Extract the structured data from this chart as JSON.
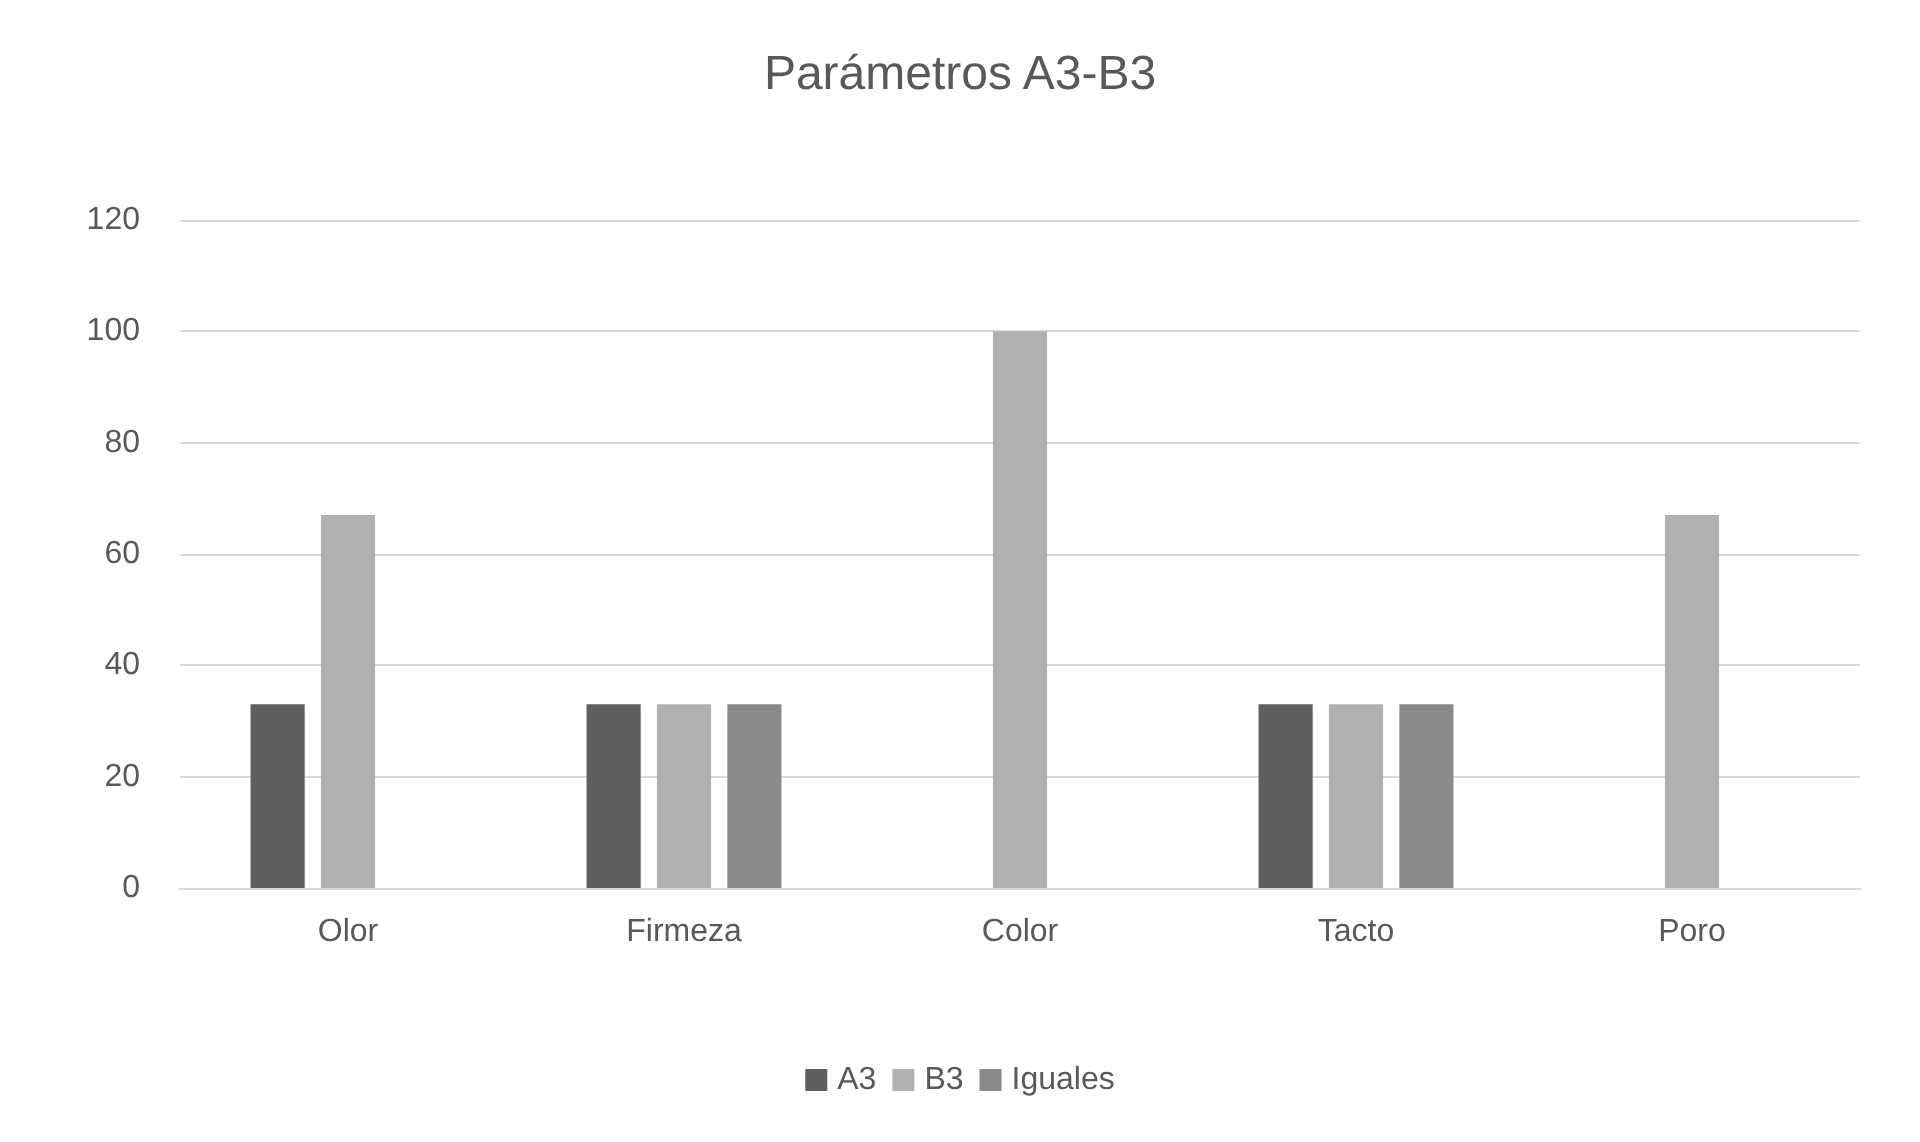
{
  "chart_data": {
    "type": "bar",
    "title": "Parámetros A3-B3",
    "categories": [
      "Olor",
      "Firmeza",
      "Color",
      "Tacto",
      "Poro"
    ],
    "series": [
      {
        "name": "A3",
        "color": "#5f5f5f",
        "values": [
          33,
          33,
          0,
          33,
          0
        ]
      },
      {
        "name": "B3",
        "color": "#b0b0b0",
        "values": [
          67,
          33,
          100,
          33,
          67
        ]
      },
      {
        "name": "Iguales",
        "color": "#8a8a8a",
        "values": [
          0,
          33,
          0,
          33,
          0
        ]
      }
    ],
    "ylim": [
      0,
      120
    ],
    "yticks": [
      0,
      20,
      40,
      60,
      80,
      100,
      120
    ],
    "grid": "y",
    "legend": "bottom"
  }
}
